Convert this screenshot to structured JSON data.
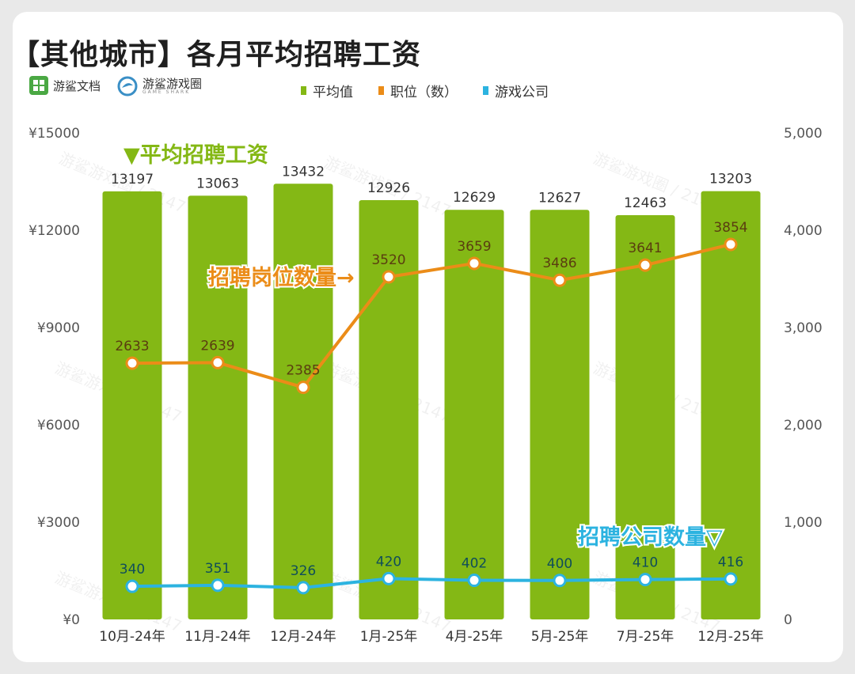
{
  "title": "【其他城市】各月平均招聘工资",
  "brands": [
    {
      "name": "游鲨文档",
      "icon": "grid-logo-icon"
    },
    {
      "name": "游鲨游戏圈",
      "sub": "GAME SHARK",
      "icon": "shark-logo-icon"
    }
  ],
  "watermark": "游鲨游戏圈 / 2147",
  "chart_data": {
    "type": "bar",
    "categories": [
      "10月-24年",
      "11月-24年",
      "12月-24年",
      "1月-25年",
      "4月-25年",
      "5月-25年",
      "7月-25年",
      "12月-25年"
    ],
    "series": [
      {
        "name": "平均值",
        "type": "bar",
        "axis": "left",
        "color": "#84b815",
        "values": [
          13197,
          13063,
          13432,
          12926,
          12629,
          12627,
          12463,
          13203
        ]
      },
      {
        "name": "职位（数）",
        "type": "line",
        "axis": "right",
        "color": "#eb8c18",
        "values": [
          2633,
          2639,
          2385,
          3520,
          3659,
          3486,
          3641,
          3854
        ]
      },
      {
        "name": "游戏公司",
        "type": "line",
        "axis": "right",
        "color": "#2cb3e0",
        "values": [
          340,
          351,
          326,
          420,
          402,
          400,
          410,
          416
        ]
      }
    ],
    "y_left": {
      "min": 0,
      "max": 15000,
      "ticks": [
        "¥0",
        "¥3000",
        "¥6000",
        "¥9000",
        "¥12000",
        "¥15000"
      ]
    },
    "y_right": {
      "min": 0,
      "max": 5000,
      "ticks": [
        "0",
        "1,000",
        "2,000",
        "3,000",
        "4,000",
        "5,000"
      ]
    },
    "annotations": {
      "salary": "▼平均招聘工资",
      "positions": "招聘岗位数量→",
      "companies": "招聘公司数量▽"
    },
    "colors": {
      "bar": "#84b815",
      "positions": "#eb8c18",
      "companies": "#2cb3e0"
    }
  }
}
